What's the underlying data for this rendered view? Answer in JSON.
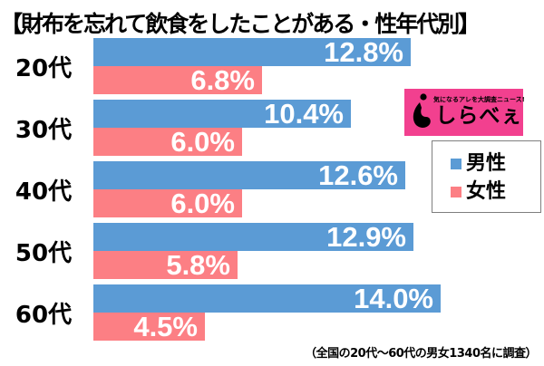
{
  "title": "【財布を忘れて飲食をしたことがある・性年代別】",
  "logo": {
    "tagline": "気になるアレを大調査ニュース!",
    "name": "しらべぇ",
    "bg_color": "#F2408F",
    "icon": "shirabee-mark"
  },
  "legend": {
    "items": [
      {
        "label": "男性",
        "color": "#5B9BD5"
      },
      {
        "label": "女性",
        "color": "#FC7F84"
      }
    ]
  },
  "footnote": "（全国の20代～60代の男女1340名に調査）",
  "chart_data": {
    "type": "bar",
    "orientation": "horizontal",
    "title": "財布を忘れて飲食をしたことがある・性年代別",
    "categories": [
      "20代",
      "30代",
      "40代",
      "50代",
      "60代"
    ],
    "series": [
      {
        "name": "男性",
        "color": "#5B9BD5",
        "values": [
          12.8,
          10.4,
          12.6,
          12.9,
          14.0
        ]
      },
      {
        "name": "女性",
        "color": "#FC7F84",
        "values": [
          6.8,
          6.0,
          6.0,
          5.8,
          4.5
        ]
      }
    ],
    "value_suffix": "%",
    "value_label_style": "inside-end-white-bold",
    "xlim": [
      0,
      18
    ],
    "grid": false,
    "legend_position": "right",
    "note": "（全国の20代～60代の男女1340名に調査）"
  }
}
